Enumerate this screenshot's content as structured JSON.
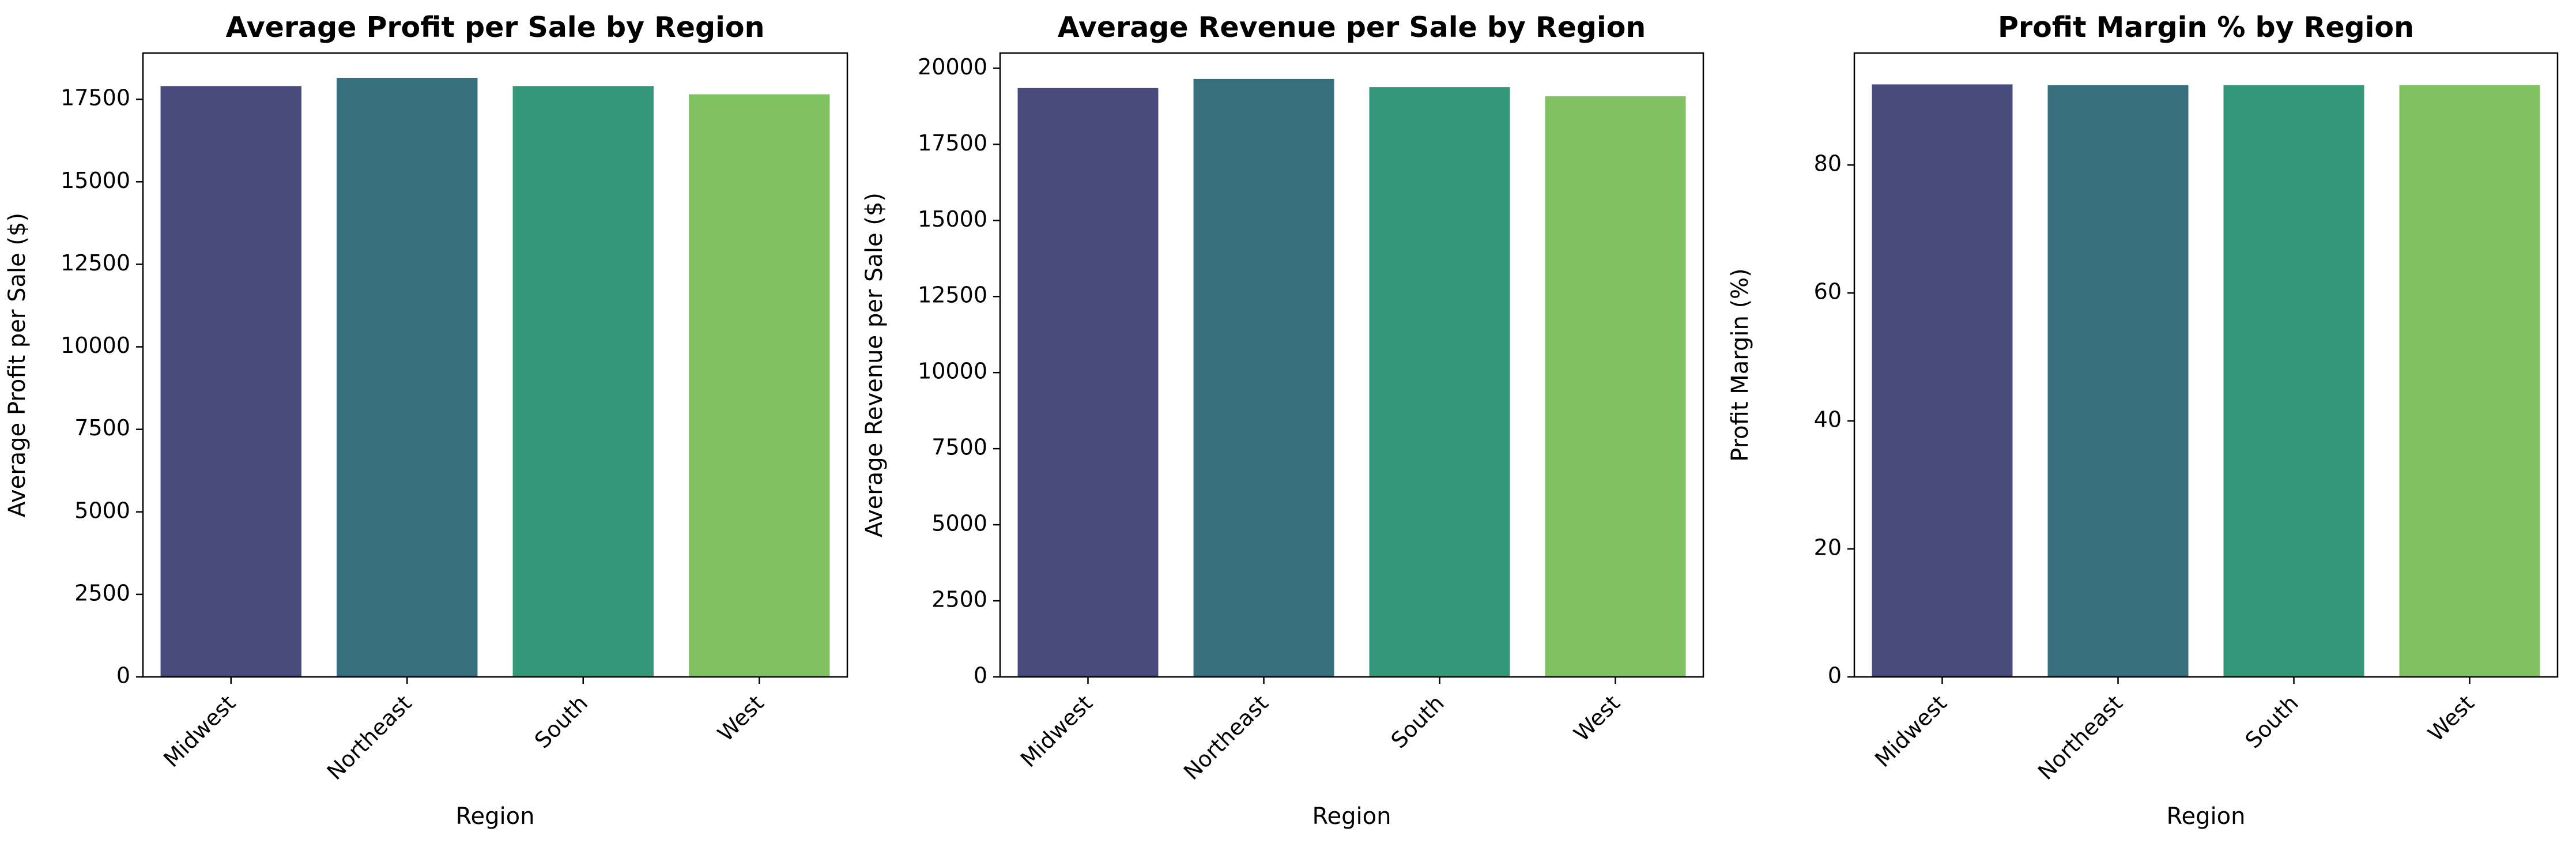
{
  "chart_data": [
    {
      "type": "bar",
      "title": "Average Profit per Sale by Region",
      "xlabel": "Region",
      "ylabel": "Average Profit per Sale ($)",
      "categories": [
        "Midwest",
        "Northeast",
        "South",
        "West"
      ],
      "values": [
        17900,
        18150,
        17900,
        17650
      ],
      "ylim": [
        0,
        18900
      ],
      "yticks": [
        0,
        2500,
        5000,
        7500,
        10000,
        12500,
        15000,
        17500
      ],
      "grid": false
    },
    {
      "type": "bar",
      "title": "Average Revenue per Sale by Region",
      "xlabel": "Region",
      "ylabel": "Average Revenue per Sale ($)",
      "categories": [
        "Midwest",
        "Northeast",
        "South",
        "West"
      ],
      "values": [
        19350,
        19650,
        19380,
        19080
      ],
      "ylim": [
        0,
        20500
      ],
      "yticks": [
        0,
        2500,
        5000,
        7500,
        10000,
        12500,
        15000,
        17500,
        20000
      ],
      "grid": false
    },
    {
      "type": "bar",
      "title": "Profit Margin % by Region",
      "xlabel": "Region",
      "ylabel": "Profit Margin (%)",
      "categories": [
        "Midwest",
        "Northeast",
        "South",
        "West"
      ],
      "values": [
        92.6,
        92.5,
        92.5,
        92.5
      ],
      "ylim": [
        0,
        97.5
      ],
      "yticks": [
        0,
        20,
        40,
        60,
        80
      ],
      "grid": false
    }
  ],
  "colors": [
    "#4a4b7d",
    "#36707f",
    "#35977a",
    "#80c262"
  ]
}
